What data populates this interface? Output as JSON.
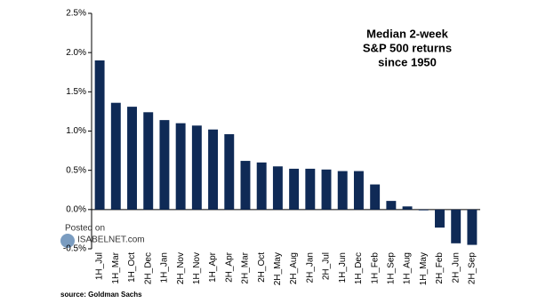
{
  "chart_data": {
    "type": "bar",
    "title": [
      "Median 2-week",
      "S&P 500 returns",
      "since 1950"
    ],
    "source": "source: Goldman Sachs",
    "watermark": [
      "Posted on",
      "ISABELNET.com"
    ],
    "categories": [
      "1H_Jul",
      "1H_Mar",
      "1H_Oct",
      "2H_Dec",
      "1H_Jan",
      "2H_Nov",
      "1H_Nov",
      "1H_Apr",
      "2H_Apr",
      "2H_Mar",
      "2H_Oct",
      "2H_May",
      "2H_Aug",
      "2H_Jan",
      "2H_Jul",
      "1H_Jun",
      "1H_Dec",
      "1H_Feb",
      "1H_Sep",
      "1H_Aug",
      "1H_May",
      "2H_Feb",
      "2H_Jun",
      "2H_Sep"
    ],
    "values": [
      1.9,
      1.36,
      1.31,
      1.24,
      1.14,
      1.1,
      1.07,
      1.02,
      0.96,
      0.62,
      0.6,
      0.55,
      0.52,
      0.52,
      0.51,
      0.49,
      0.49,
      0.32,
      0.11,
      0.04,
      -0.01,
      -0.23,
      -0.43,
      -0.45
    ],
    "color": "#0f2a56",
    "ylim": [
      -0.5,
      2.5
    ],
    "yticks": [
      {
        "value": -0.5,
        "label": "-0.5%"
      },
      {
        "value": 0,
        "label": "0.0%"
      },
      {
        "value": 0.5,
        "label": "0.5%"
      },
      {
        "value": 1,
        "label": "1.0%"
      },
      {
        "value": 1.5,
        "label": "1.5%"
      },
      {
        "value": 2,
        "label": "2.0%"
      },
      {
        "value": 2.5,
        "label": "2.5%"
      }
    ],
    "grid": false
  }
}
